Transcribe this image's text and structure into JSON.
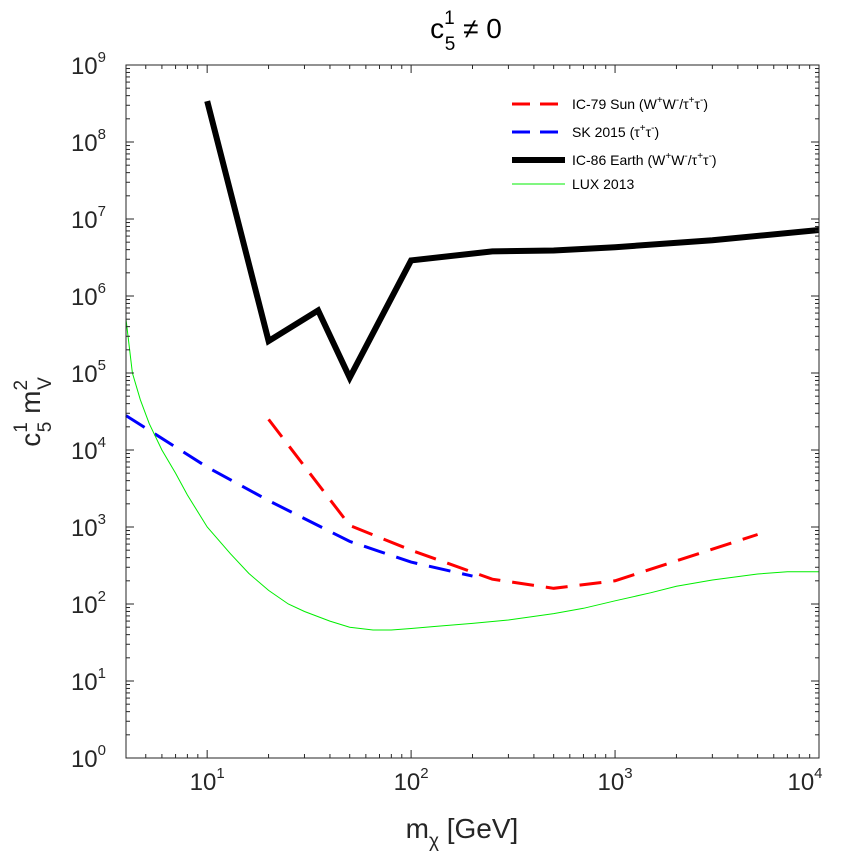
{
  "chart_data": {
    "type": "line",
    "title": {
      "base": "c",
      "sup": "1",
      "sub": "5",
      "tail": " ≠ 0"
    },
    "xlabel": {
      "base": "m",
      "sub": "χ",
      "tail": " [GeV]"
    },
    "ylabel": {
      "base1": "c",
      "sup1": "1",
      "sub1": "5",
      "base2": " m",
      "sup2": "2",
      "sub2": "V"
    },
    "xscale": "log",
    "yscale": "log",
    "xlim": [
      4,
      10000
    ],
    "ylim": [
      1,
      1000000000
    ],
    "xticks": [
      {
        "value": 10,
        "base": "10",
        "exp": "1"
      },
      {
        "value": 100,
        "base": "10",
        "exp": "2"
      },
      {
        "value": 1000,
        "base": "10",
        "exp": "3"
      },
      {
        "value": 10000,
        "base": "10",
        "exp": "4"
      }
    ],
    "yticks": [
      {
        "value": 1,
        "base": "10",
        "exp": "0"
      },
      {
        "value": 10,
        "base": "10",
        "exp": "1"
      },
      {
        "value": 100,
        "base": "10",
        "exp": "2"
      },
      {
        "value": 1000,
        "base": "10",
        "exp": "3"
      },
      {
        "value": 10000,
        "base": "10",
        "exp": "4"
      },
      {
        "value": 100000,
        "base": "10",
        "exp": "5"
      },
      {
        "value": 1000000,
        "base": "10",
        "exp": "6"
      },
      {
        "value": 10000000,
        "base": "10",
        "exp": "7"
      },
      {
        "value": 100000000,
        "base": "10",
        "exp": "8"
      },
      {
        "value": 1000000000,
        "base": "10",
        "exp": "9"
      }
    ],
    "grid": false,
    "legend_position": "top-right",
    "series": [
      {
        "legend": [
          {
            "t": "IC-79 Sun (W"
          },
          {
            "t": "+",
            "sup": true
          },
          {
            "t": "W"
          },
          {
            "t": "-",
            "sup": true
          },
          {
            "t": "/τ"
          },
          {
            "t": "+",
            "sup": true
          },
          {
            "t": "τ"
          },
          {
            "t": "-",
            "sup": true
          },
          {
            "t": ")"
          }
        ],
        "color": "#ff0000",
        "style": "dashed",
        "width": 3,
        "x": [
          20,
          50,
          100,
          250,
          500,
          1000,
          5000
        ],
        "y": [
          25000,
          1050,
          500,
          210,
          160,
          200,
          800
        ]
      },
      {
        "legend": [
          {
            "t": "SK 2015 (τ"
          },
          {
            "t": "+",
            "sup": true
          },
          {
            "t": "τ"
          },
          {
            "t": "-",
            "sup": true
          },
          {
            "t": ")"
          }
        ],
        "color": "#0000ff",
        "style": "dashed",
        "width": 3,
        "x": [
          4,
          10,
          20,
          50,
          100,
          200
        ],
        "y": [
          28000,
          6000,
          2200,
          650,
          350,
          230
        ]
      },
      {
        "legend": [
          {
            "t": "IC-86 Earth (W"
          },
          {
            "t": "+",
            "sup": true
          },
          {
            "t": "W"
          },
          {
            "t": "-",
            "sup": true
          },
          {
            "t": "/τ"
          },
          {
            "t": "+",
            "sup": true
          },
          {
            "t": "τ"
          },
          {
            "t": "-",
            "sup": true
          },
          {
            "t": ")"
          }
        ],
        "color": "#000000",
        "style": "solid",
        "width": 6,
        "x": [
          10,
          20,
          35,
          50,
          100,
          250,
          500,
          1000,
          3000,
          10000
        ],
        "y": [
          340000000,
          260000,
          650000,
          87000,
          2900000,
          3800000,
          3900000,
          4300000,
          5300000,
          7200000
        ]
      },
      {
        "legend": [
          {
            "t": "LUX 2013"
          }
        ],
        "color": "#00ee00",
        "style": "solid",
        "width": 1,
        "x": [
          4,
          4.3,
          4.7,
          5.2,
          6,
          7,
          8,
          10,
          13,
          16,
          20,
          25,
          30,
          40,
          50,
          65,
          80,
          100,
          130,
          200,
          300,
          500,
          700,
          1000,
          1500,
          2000,
          3000,
          5000,
          7000,
          10000
        ],
        "y": [
          500000,
          100000,
          45000,
          22000,
          10000,
          5000,
          2600,
          1000,
          450,
          250,
          150,
          100,
          80,
          60,
          50,
          46,
          46,
          48,
          51,
          56,
          62,
          75,
          88,
          110,
          140,
          170,
          205,
          245,
          262,
          262
        ]
      }
    ]
  }
}
